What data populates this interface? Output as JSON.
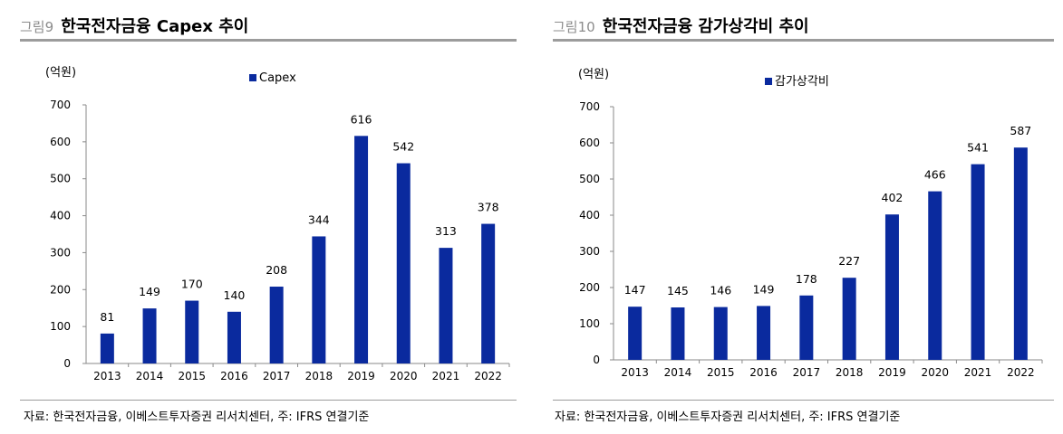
{
  "figures": [
    {
      "label": "그림9",
      "title": "한국전자금융 Capex 추이",
      "unit": "(억원)",
      "source": "자료: 한국전자금융, 이베스트투자증권 리서치센터, 주: IFRS 연결기준"
    },
    {
      "label": "그림10",
      "title": "한국전자금융 감가상각비 추이",
      "unit": "(억원)",
      "source": "자료: 한국전자금융, 이베스트투자증권 리서치센터, 주: IFRS 연결기준"
    }
  ],
  "chart_data": [
    {
      "type": "bar",
      "title": "한국전자금융 Capex 추이",
      "ylabel": "(억원)",
      "categories": [
        "2013",
        "2014",
        "2015",
        "2016",
        "2017",
        "2018",
        "2019",
        "2020",
        "2021",
        "2022"
      ],
      "series": [
        {
          "name": "Capex",
          "values": [
            81,
            149,
            170,
            140,
            208,
            344,
            616,
            542,
            313,
            378
          ]
        }
      ],
      "ylim": [
        0,
        700
      ],
      "yticks": [
        0,
        100,
        200,
        300,
        400,
        500,
        600,
        700
      ],
      "grid": false,
      "legend": "top-center",
      "color": "#0a2a9e"
    },
    {
      "type": "bar",
      "title": "한국전자금융 감가상각비 추이",
      "ylabel": "(억원)",
      "categories": [
        "2013",
        "2014",
        "2015",
        "2016",
        "2017",
        "2018",
        "2019",
        "2020",
        "2021",
        "2022"
      ],
      "series": [
        {
          "name": "감가상각비",
          "values": [
            147,
            145,
            146,
            149,
            178,
            227,
            402,
            466,
            541,
            587
          ]
        }
      ],
      "ylim": [
        0,
        700
      ],
      "yticks": [
        0,
        100,
        200,
        300,
        400,
        500,
        600,
        700
      ],
      "grid": false,
      "legend": "top-center",
      "color": "#0a2a9e"
    }
  ]
}
